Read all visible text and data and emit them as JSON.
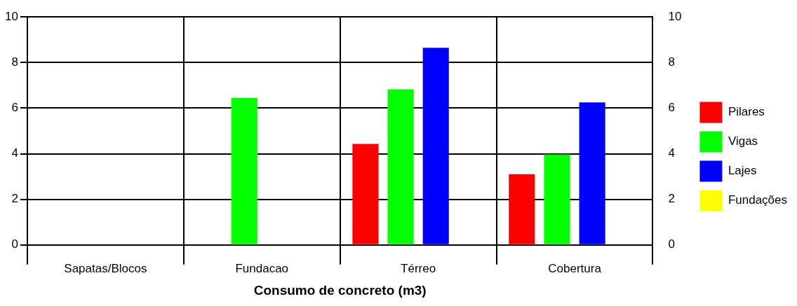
{
  "chart_data": {
    "type": "bar",
    "xlabel": "Consumo de concreto (m3)",
    "categories": [
      "Sapatas/Blocos",
      "Fundacao",
      "Térreo",
      "Cobertura"
    ],
    "series": [
      {
        "name": "Pilares",
        "color": "#ff0000",
        "values": [
          null,
          null,
          4.43,
          3.1
        ]
      },
      {
        "name": "Vigas",
        "color": "#00ff00",
        "values": [
          null,
          6.45,
          6.83,
          3.97
        ]
      },
      {
        "name": "Lajes",
        "color": "#0000ff",
        "values": [
          null,
          null,
          8.65,
          6.25
        ]
      },
      {
        "name": "Fundações",
        "color": "#ffff00",
        "values": [
          null,
          null,
          null,
          null
        ]
      }
    ],
    "ylim": [
      0,
      10
    ],
    "yticks": [
      0,
      2,
      4,
      6,
      8,
      10
    ],
    "y2lim": [
      0,
      10
    ],
    "y2ticks": [
      0,
      2,
      4,
      6,
      8,
      10
    ],
    "grid": true,
    "legend": "right"
  }
}
